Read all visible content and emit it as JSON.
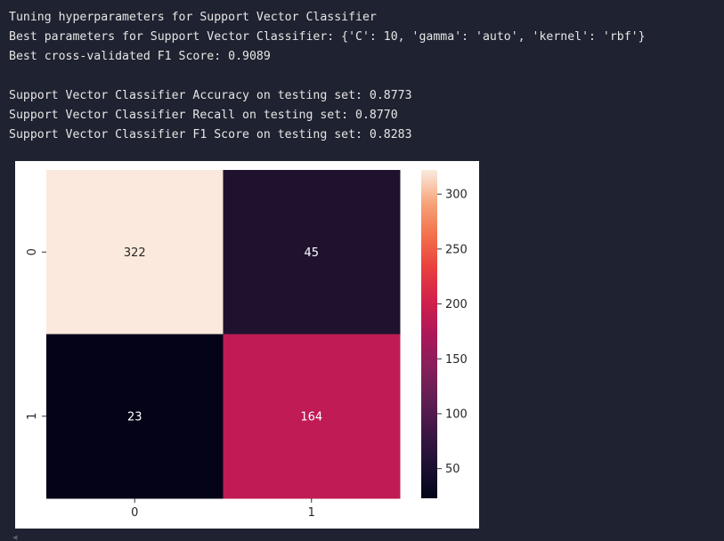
{
  "output": {
    "lines": [
      "Tuning hyperparameters for Support Vector Classifier",
      "Best parameters for Support Vector Classifier: {'C': 10, 'gamma': 'auto', 'kernel': 'rbf'}",
      "Best cross-validated F1 Score: 0.9089",
      "",
      "Support Vector Classifier Accuracy on testing set: 0.8773",
      "Support Vector Classifier Recall on testing set: 0.8770",
      "Support Vector Classifier F1 Score on testing set: 0.8283"
    ]
  },
  "chart_data": {
    "type": "heatmap",
    "title": "",
    "xlabel": "",
    "ylabel": "",
    "x_categories": [
      "0",
      "1"
    ],
    "y_categories": [
      "0",
      "1"
    ],
    "values": [
      [
        322,
        45
      ],
      [
        23,
        164
      ]
    ],
    "colormap": "rocket",
    "colorbar": {
      "ticks": [
        50,
        100,
        150,
        200,
        250,
        300
      ],
      "tick_labels": [
        "50",
        "100",
        "150",
        "200",
        "250",
        "300"
      ],
      "range": [
        23,
        322
      ]
    },
    "colors": {
      "cell_322": "#fae9dc",
      "cell_45": "#20122f",
      "cell_23": "#050318",
      "cell_164": "#c01b55",
      "annotation_on_light": "#262626",
      "annotation_on_dark": "#ffffff"
    },
    "grid": false,
    "legend": "colorbar-right"
  },
  "colors": {
    "background": "#1f2230",
    "output_text": "#e6e6e6"
  },
  "icons": {
    "scroll_indicator": "scroll-left-icon"
  }
}
